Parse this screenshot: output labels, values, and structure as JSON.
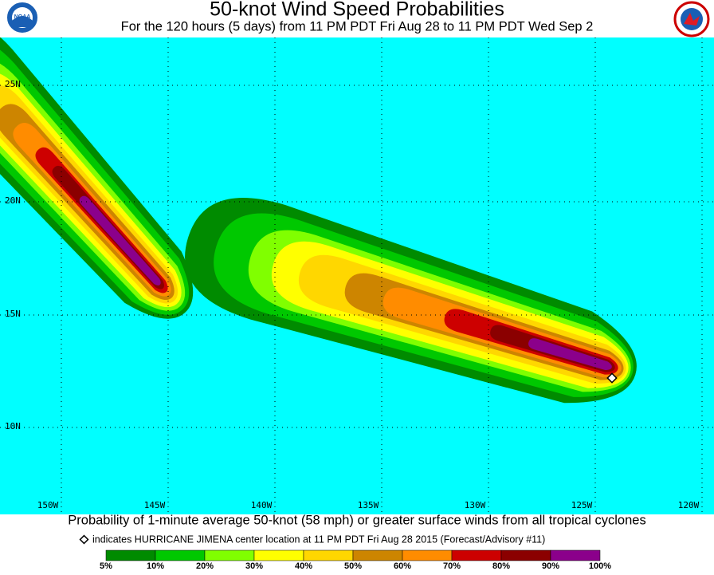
{
  "header": {
    "title": "50-knot Wind Speed Probabilities",
    "subtitle": "For the 120 hours (5 days) from 11 PM PDT Fri Aug 28 to 11 PM PDT Wed Sep 2",
    "left_logo": "NOAA"
  },
  "map": {
    "lat_labels": [
      "25N",
      "20N",
      "15N",
      "10N"
    ],
    "lon_labels": [
      "150W",
      "145W",
      "140W",
      "135W",
      "130W",
      "125W",
      "120W"
    ]
  },
  "caption": "Probability of 1-minute average 50-knot (58 mph) or greater surface winds from all tropical cyclones",
  "note": "indicates HURRICANE JIMENA center location at 11 PM PDT Fri Aug 28 2015 (Forecast/Advisory #11)",
  "legend": {
    "labels": [
      "5%",
      "10%",
      "20%",
      "30%",
      "40%",
      "50%",
      "60%",
      "70%",
      "80%",
      "90%",
      "100%"
    ],
    "colors": [
      "#008b00",
      "#00c800",
      "#80ff00",
      "#ffff00",
      "#ffd700",
      "#cd8500",
      "#ff8c00",
      "#cd0000",
      "#8b0000",
      "#8b008b"
    ]
  }
}
